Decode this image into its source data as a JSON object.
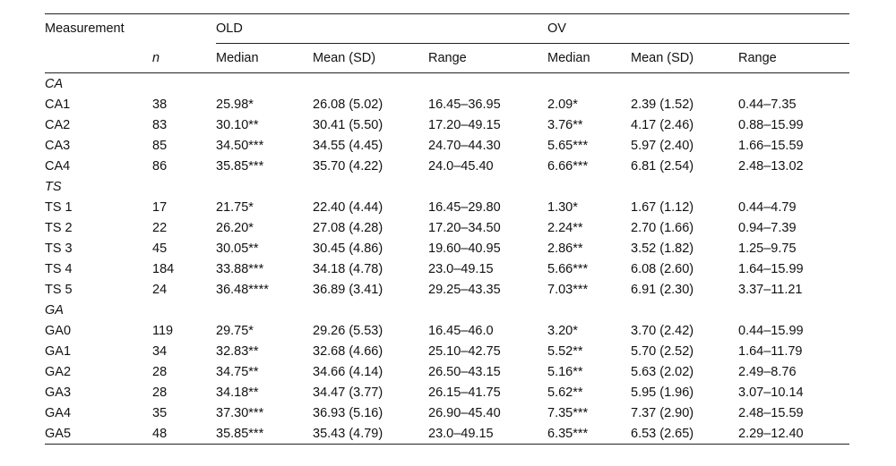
{
  "header": {
    "measurement": "Measurement",
    "old": "OLD",
    "ov": "OV",
    "n": "n",
    "cols": [
      "Median",
      "Mean (SD)",
      "Range",
      "Median",
      "Mean (SD)",
      "Range"
    ]
  },
  "sections": [
    {
      "title": "CA",
      "rows": [
        {
          "label": "CA1",
          "n": "38",
          "old_median": "25.98*",
          "old_mean": "26.08 (5.02)",
          "old_range": "16.45–36.95",
          "ov_median": "2.09*",
          "ov_mean": "2.39 (1.52)",
          "ov_range": "0.44–7.35"
        },
        {
          "label": "CA2",
          "n": "83",
          "old_median": "30.10**",
          "old_mean": "30.41 (5.50)",
          "old_range": "17.20–49.15",
          "ov_median": "3.76**",
          "ov_mean": "4.17 (2.46)",
          "ov_range": "0.88–15.99"
        },
        {
          "label": "CA3",
          "n": "85",
          "old_median": "34.50***",
          "old_mean": "34.55 (4.45)",
          "old_range": "24.70–44.30",
          "ov_median": "5.65***",
          "ov_mean": "5.97 (2.40)",
          "ov_range": "1.66–15.59"
        },
        {
          "label": "CA4",
          "n": "86",
          "old_median": "35.85***",
          "old_mean": "35.70 (4.22)",
          "old_range": "24.0–45.40",
          "ov_median": "6.66***",
          "ov_mean": "6.81 (2.54)",
          "ov_range": "2.48–13.02"
        }
      ]
    },
    {
      "title": "TS",
      "rows": [
        {
          "label": "TS 1",
          "n": "17",
          "old_median": "21.75*",
          "old_mean": "22.40 (4.44)",
          "old_range": "16.45–29.80",
          "ov_median": "1.30*",
          "ov_mean": "1.67 (1.12)",
          "ov_range": "0.44–4.79"
        },
        {
          "label": "TS 2",
          "n": "22",
          "old_median": "26.20*",
          "old_mean": "27.08 (4.28)",
          "old_range": "17.20–34.50",
          "ov_median": "2.24**",
          "ov_mean": "2.70 (1.66)",
          "ov_range": "0.94–7.39"
        },
        {
          "label": "TS 3",
          "n": "45",
          "old_median": "30.05**",
          "old_mean": "30.45 (4.86)",
          "old_range": "19.60–40.95",
          "ov_median": "2.86**",
          "ov_mean": "3.52 (1.82)",
          "ov_range": "1.25–9.75"
        },
        {
          "label": "TS 4",
          "n": "184",
          "old_median": "33.88***",
          "old_mean": "34.18 (4.78)",
          "old_range": "23.0–49.15",
          "ov_median": "5.66***",
          "ov_mean": "6.08 (2.60)",
          "ov_range": "1.64–15.99"
        },
        {
          "label": "TS 5",
          "n": "24",
          "old_median": "36.48****",
          "old_mean": "36.89 (3.41)",
          "old_range": "29.25–43.35",
          "ov_median": "7.03***",
          "ov_mean": "6.91 (2.30)",
          "ov_range": "3.37–11.21"
        }
      ]
    },
    {
      "title": "GA",
      "rows": [
        {
          "label": "GA0",
          "n": "119",
          "old_median": "29.75*",
          "old_mean": "29.26 (5.53)",
          "old_range": "16.45–46.0",
          "ov_median": "3.20*",
          "ov_mean": "3.70 (2.42)",
          "ov_range": "0.44–15.99"
        },
        {
          "label": "GA1",
          "n": "34",
          "old_median": "32.83**",
          "old_mean": "32.68 (4.66)",
          "old_range": "25.10–42.75",
          "ov_median": "5.52**",
          "ov_mean": "5.70 (2.52)",
          "ov_range": "1.64–11.79"
        },
        {
          "label": "GA2",
          "n": "28",
          "old_median": "34.75**",
          "old_mean": "34.66 (4.14)",
          "old_range": "26.50–43.15",
          "ov_median": "5.16**",
          "ov_mean": "5.63 (2.02)",
          "ov_range": "2.49–8.76"
        },
        {
          "label": "GA3",
          "n": "28",
          "old_median": "34.18**",
          "old_mean": "34.47 (3.77)",
          "old_range": "26.15–41.75",
          "ov_median": "5.62**",
          "ov_mean": "5.95 (1.96)",
          "ov_range": "3.07–10.14"
        },
        {
          "label": "GA4",
          "n": "35",
          "old_median": "37.30***",
          "old_mean": "36.93 (5.16)",
          "old_range": "26.90–45.40",
          "ov_median": "7.35***",
          "ov_mean": "7.37 (2.90)",
          "ov_range": "2.48–15.59"
        },
        {
          "label": "GA5",
          "n": "48",
          "old_median": "35.85***",
          "old_mean": "35.43 (4.79)",
          "old_range": "23.0–49.15",
          "ov_median": "6.35***",
          "ov_mean": "6.53 (2.65)",
          "ov_range": "2.29–12.40"
        }
      ]
    }
  ]
}
